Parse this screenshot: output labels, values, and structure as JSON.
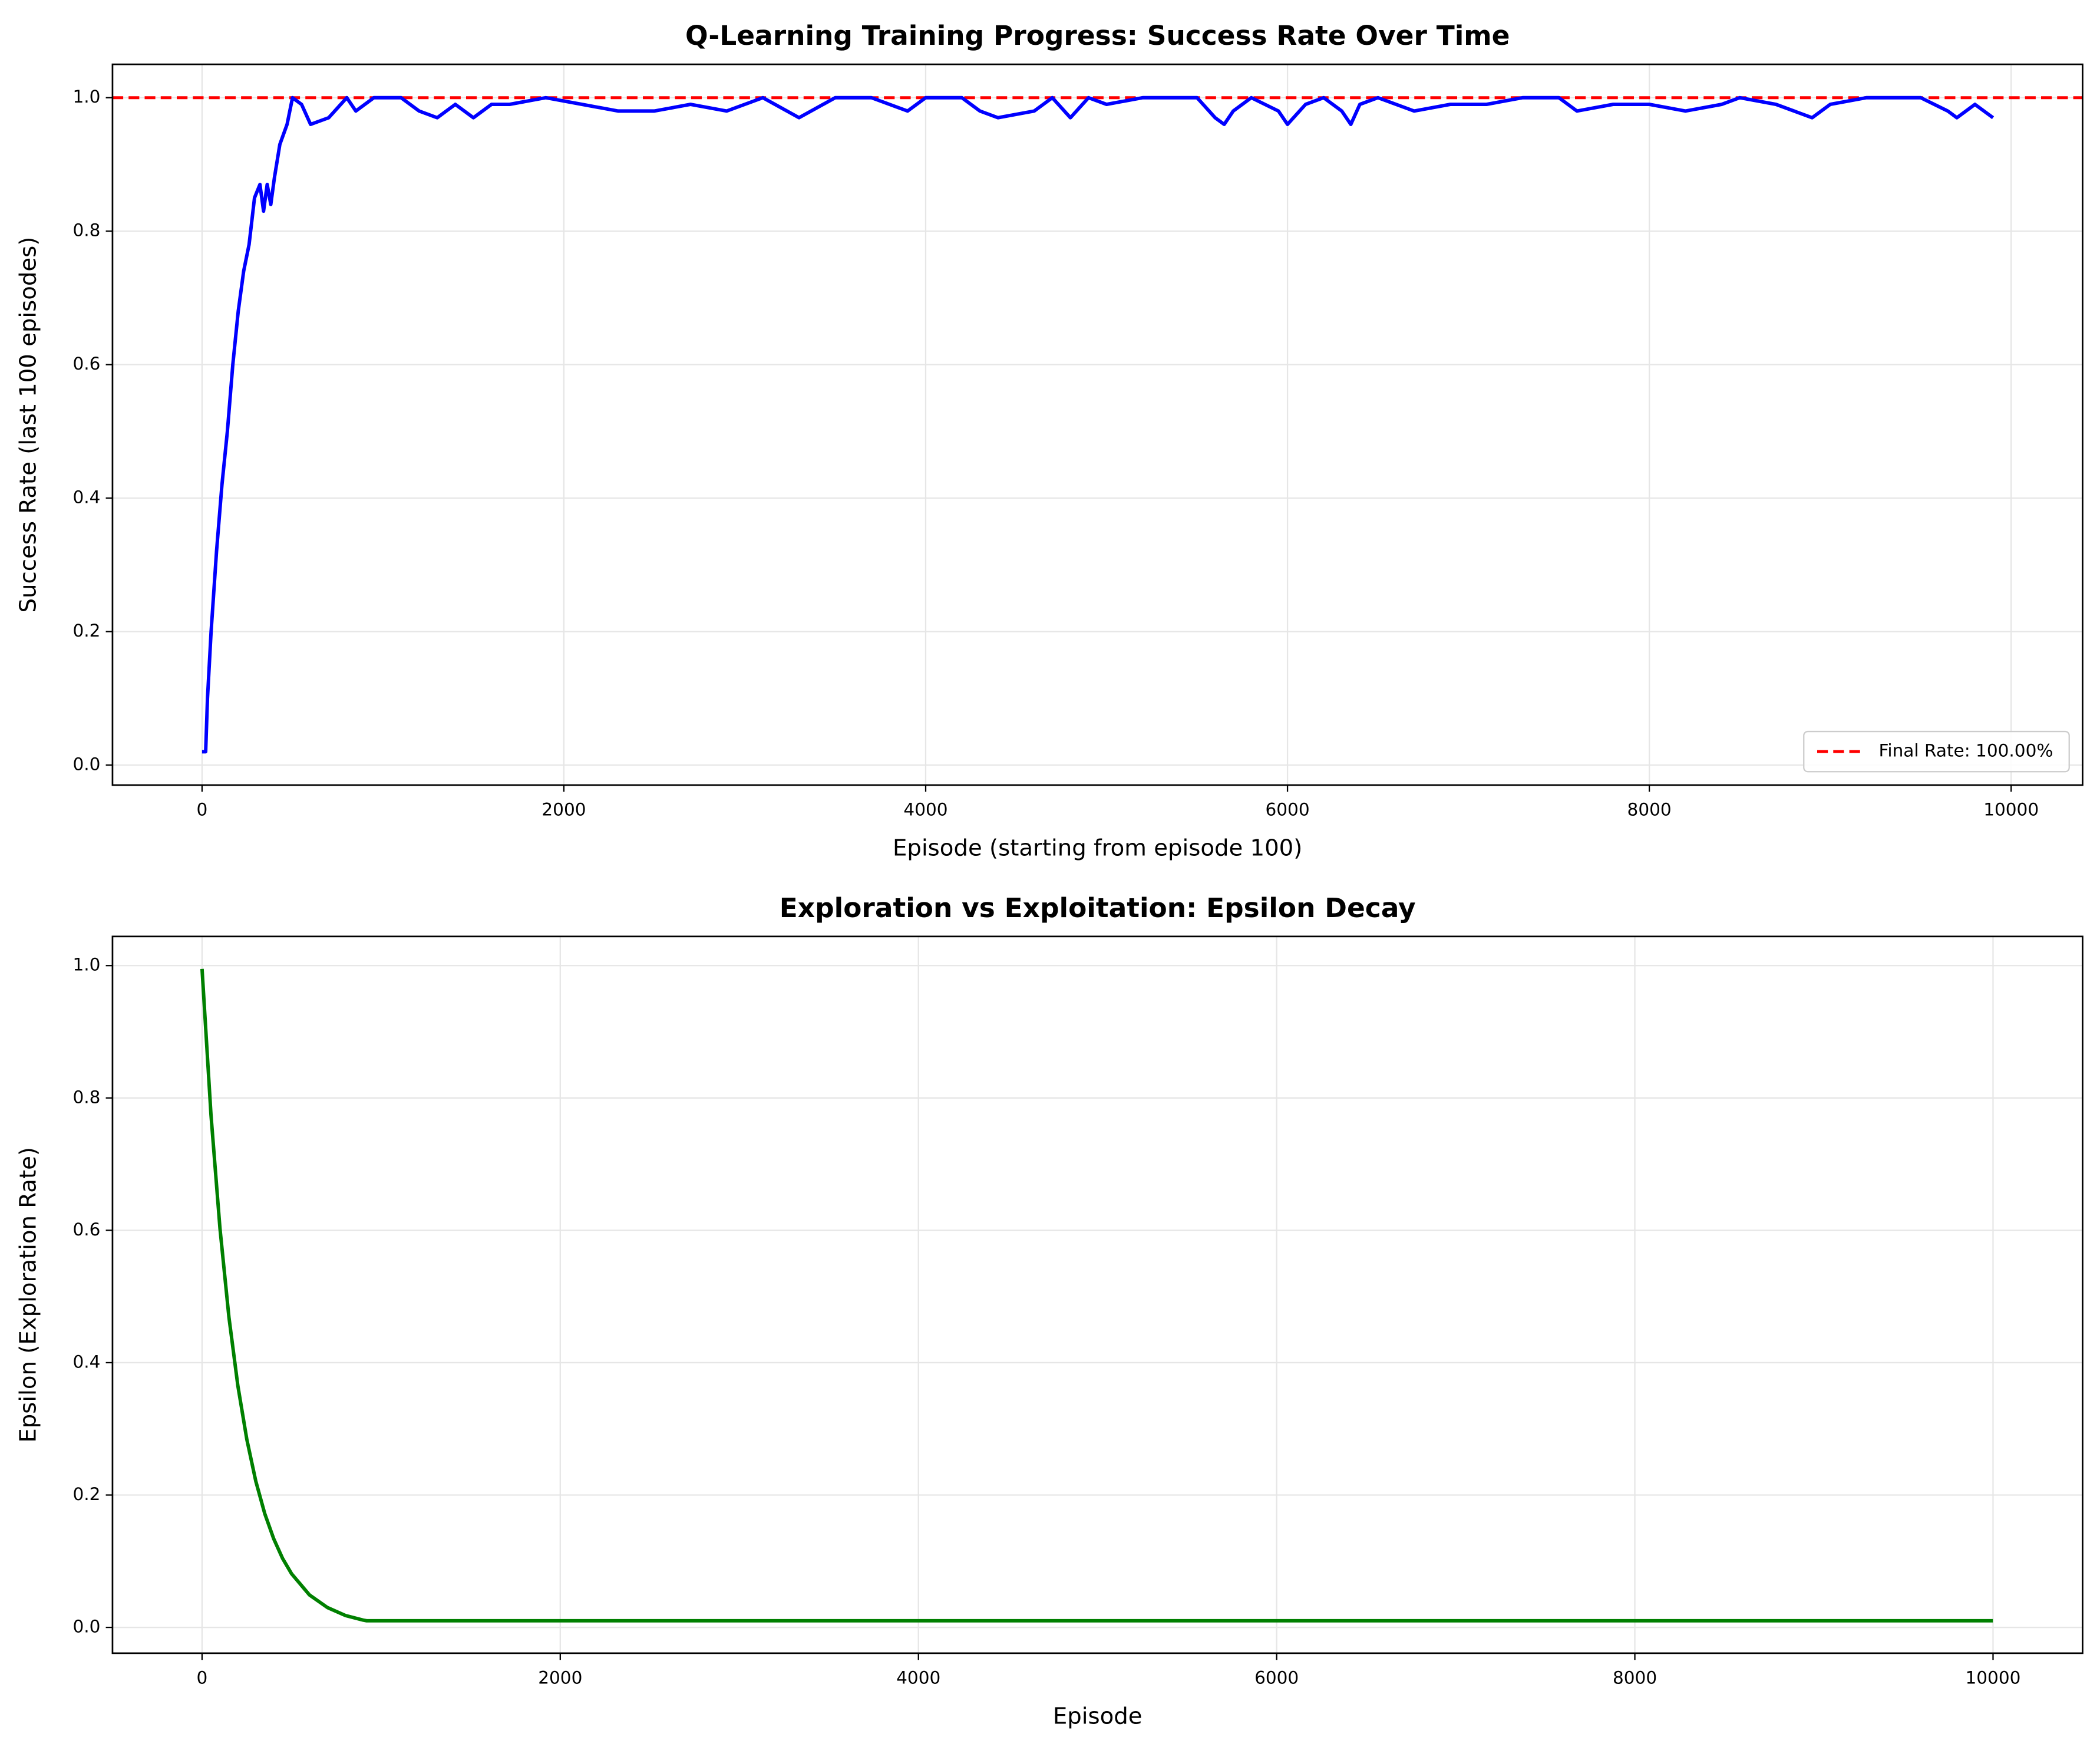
{
  "chart_data": [
    {
      "type": "line",
      "title": "Q-Learning Training Progress: Success Rate Over Time",
      "xlabel": "Episode (starting from episode 100)",
      "ylabel": "Success Rate (last 100 episodes)",
      "x": [
        0,
        20,
        30,
        50,
        80,
        110,
        140,
        170,
        200,
        230,
        260,
        290,
        320,
        340,
        360,
        380,
        400,
        430,
        470,
        500,
        550,
        600,
        700,
        800,
        850,
        950,
        1100,
        1200,
        1300,
        1400,
        1500,
        1600,
        1700,
        1900,
        2100,
        2300,
        2500,
        2700,
        2900,
        3100,
        3300,
        3500,
        3700,
        3900,
        4000,
        4200,
        4300,
        4400,
        4600,
        4700,
        4800,
        4900,
        5000,
        5200,
        5500,
        5600,
        5650,
        5700,
        5800,
        5950,
        6000,
        6100,
        6200,
        6300,
        6350,
        6400,
        6500,
        6700,
        6900,
        7100,
        7300,
        7500,
        7600,
        7800,
        8000,
        8200,
        8400,
        8500,
        8700,
        8900,
        9000,
        9200,
        9500,
        9650,
        9700,
        9800,
        9900
      ],
      "series": [
        {
          "color": "#0000ff",
          "values": [
            0.02,
            0.02,
            0.1,
            0.2,
            0.32,
            0.42,
            0.5,
            0.6,
            0.68,
            0.74,
            0.78,
            0.85,
            0.87,
            0.83,
            0.87,
            0.84,
            0.88,
            0.93,
            0.96,
            1.0,
            0.99,
            0.96,
            0.97,
            1.0,
            0.98,
            1.0,
            1.0,
            0.98,
            0.97,
            0.99,
            0.97,
            0.99,
            0.99,
            1.0,
            0.99,
            0.98,
            0.98,
            0.99,
            0.98,
            1.0,
            0.97,
            1.0,
            1.0,
            0.98,
            1.0,
            1.0,
            0.98,
            0.97,
            0.98,
            1.0,
            0.97,
            1.0,
            0.99,
            1.0,
            1.0,
            0.97,
            0.96,
            0.98,
            1.0,
            0.98,
            0.96,
            0.99,
            1.0,
            0.98,
            0.96,
            0.99,
            1.0,
            0.98,
            0.99,
            0.99,
            1.0,
            1.0,
            0.98,
            0.99,
            0.99,
            0.98,
            0.99,
            1.0,
            0.99,
            0.97,
            0.99,
            1.0,
            1.0,
            0.98,
            0.97,
            0.99,
            0.97
          ]
        }
      ],
      "hline": {
        "y": 1.0,
        "name": "Final Rate: 100.00%",
        "color": "#ff0000",
        "style": "dashed"
      },
      "legend": "lower right",
      "xlim": [
        -495,
        10395
      ],
      "xticks": [
        0,
        2000,
        4000,
        6000,
        8000,
        10000
      ],
      "ylim": [
        -0.03,
        1.05
      ],
      "yticks": [
        {
          "value": 0,
          "label": "0.0"
        },
        0.2,
        0.4,
        0.6,
        0.8,
        {
          "value": 1,
          "label": "1.0"
        }
      ],
      "grid": true
    },
    {
      "type": "line",
      "title": "Exploration vs Exploitation: Epsilon Decay",
      "xlabel": "Episode",
      "ylabel": "Epsilon (Exploration Rate)",
      "x": [
        0,
        50,
        100,
        150,
        200,
        250,
        300,
        350,
        400,
        450,
        500,
        600,
        700,
        800,
        900,
        919,
        2000,
        5000,
        9999
      ],
      "series": [
        {
          "color": "#008000",
          "values": [
            0.995,
            0.774,
            0.603,
            0.469,
            0.365,
            0.284,
            0.221,
            0.172,
            0.134,
            0.104,
            0.081,
            0.049,
            0.03,
            0.018,
            0.011,
            0.01,
            0.01,
            0.01,
            0.01
          ]
        }
      ],
      "xlim": [
        -500,
        10500
      ],
      "xticks": [
        0,
        2000,
        4000,
        6000,
        8000,
        10000
      ],
      "ylim": [
        -0.039,
        1.044
      ],
      "yticks": [
        {
          "value": 0,
          "label": "0.0"
        },
        0.2,
        0.4,
        0.6,
        0.8,
        {
          "value": 1,
          "label": "1.0"
        }
      ],
      "grid": true
    }
  ]
}
